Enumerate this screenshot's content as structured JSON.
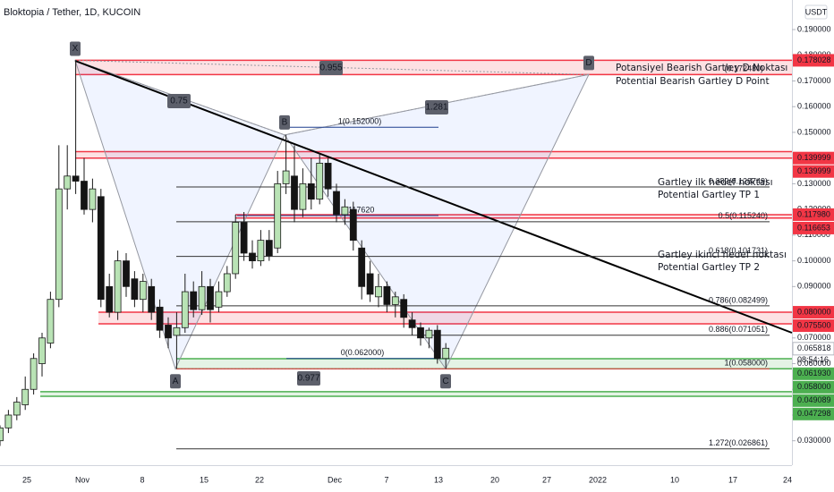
{
  "chart_data": {
    "type": "candlestick",
    "title": "Bloktopia / Tether, 1D, KUCOIN",
    "unit": "USDT",
    "up_color": "#b9e3b5",
    "down_color": "#141414",
    "x_labels": [
      "25",
      "Nov",
      "8",
      "15",
      "22",
      "Dec",
      "7",
      "13",
      "20",
      "27",
      "2022",
      "10",
      "17",
      "24"
    ],
    "open": [
      0.03,
      0.035,
      0.04,
      0.044,
      0.05,
      0.06,
      0.068,
      0.085,
      0.128,
      0.133,
      0.131,
      0.12,
      0.125,
      0.09,
      0.08,
      0.1,
      0.093,
      0.085,
      0.09,
      0.082,
      0.075,
      0.071,
      0.074,
      0.088,
      0.081,
      0.09,
      0.082,
      0.088,
      0.095,
      0.115,
      0.103,
      0.1,
      0.108,
      0.105,
      0.13,
      0.133,
      0.12,
      0.13,
      0.124,
      0.138,
      0.127,
      0.118,
      0.12,
      0.105,
      0.095,
      0.086,
      0.09,
      0.083,
      0.085,
      0.077,
      0.074,
      0.07,
      0.073,
      0.062
    ],
    "high": [
      0.036,
      0.042,
      0.047,
      0.055,
      0.064,
      0.072,
      0.088,
      0.145,
      0.145,
      0.178,
      0.14,
      0.132,
      0.128,
      0.095,
      0.104,
      0.103,
      0.096,
      0.095,
      0.093,
      0.085,
      0.078,
      0.08,
      0.095,
      0.092,
      0.096,
      0.093,
      0.092,
      0.098,
      0.118,
      0.119,
      0.108,
      0.112,
      0.112,
      0.135,
      0.149,
      0.145,
      0.136,
      0.14,
      0.142,
      0.14,
      0.13,
      0.124,
      0.123,
      0.108,
      0.1,
      0.095,
      0.092,
      0.088,
      0.087,
      0.08,
      0.076,
      0.074,
      0.075,
      0.068
    ],
    "low": [
      0.028,
      0.033,
      0.038,
      0.042,
      0.048,
      0.055,
      0.066,
      0.082,
      0.12,
      0.126,
      0.118,
      0.115,
      0.082,
      0.078,
      0.077,
      0.086,
      0.082,
      0.08,
      0.077,
      0.07,
      0.066,
      0.058,
      0.072,
      0.078,
      0.079,
      0.076,
      0.08,
      0.086,
      0.093,
      0.1,
      0.097,
      0.098,
      0.1,
      0.103,
      0.126,
      0.115,
      0.117,
      0.12,
      0.122,
      0.125,
      0.115,
      0.114,
      0.104,
      0.085,
      0.084,
      0.082,
      0.08,
      0.078,
      0.074,
      0.071,
      0.067,
      0.066,
      0.06,
      0.058
    ],
    "close": [
      0.035,
      0.04,
      0.045,
      0.05,
      0.062,
      0.07,
      0.085,
      0.128,
      0.133,
      0.131,
      0.12,
      0.128,
      0.085,
      0.08,
      0.1,
      0.09,
      0.085,
      0.092,
      0.08,
      0.073,
      0.07,
      0.074,
      0.088,
      0.081,
      0.09,
      0.081,
      0.088,
      0.095,
      0.115,
      0.103,
      0.1,
      0.108,
      0.102,
      0.13,
      0.135,
      0.12,
      0.13,
      0.124,
      0.138,
      0.128,
      0.118,
      0.121,
      0.108,
      0.09,
      0.087,
      0.09,
      0.083,
      0.086,
      0.078,
      0.074,
      0.07,
      0.073,
      0.062,
      0.066
    ],
    "ylim": [
      0.0205,
      0.2015
    ],
    "yticks": [
      {
        "value": 0.19,
        "label": "0.190000"
      },
      {
        "value": 0.18,
        "label": "0.180000"
      },
      {
        "value": 0.17,
        "label": "0.170000"
      },
      {
        "value": 0.16,
        "label": "0.160000"
      },
      {
        "value": 0.15,
        "label": "0.150000"
      },
      {
        "value": 0.14,
        "label": "0.140000"
      },
      {
        "value": 0.13,
        "label": "0.130000"
      },
      {
        "value": 0.12,
        "label": "0.120000"
      },
      {
        "value": 0.11,
        "label": "0.110000"
      },
      {
        "value": 0.1,
        "label": "0.100000"
      },
      {
        "value": 0.09,
        "label": "0.090000"
      },
      {
        "value": 0.08,
        "label": "0.080000"
      },
      {
        "value": 0.07,
        "label": "0.070000"
      },
      {
        "value": 0.06,
        "label": "0.060000"
      },
      {
        "value": 0.05,
        "label": "0.050000"
      },
      {
        "value": 0.04,
        "label": "0.040000"
      },
      {
        "value": 0.03,
        "label": "0.030000"
      }
    ],
    "price_tags": [
      {
        "value": 0.178028,
        "label": "0.178028",
        "color": "#f23645"
      },
      {
        "value": 0.139999,
        "label": "0.139999",
        "color": "#f23645"
      },
      {
        "value": 0.139999,
        "label": "0.139999",
        "color": "#f23645"
      },
      {
        "value": 0.11798,
        "label": "0.117980",
        "color": "#f23645"
      },
      {
        "value": 0.116653,
        "label": "0.116653",
        "color": "#f23645"
      },
      {
        "value": 0.08,
        "label": "0.080000",
        "color": "#f23645"
      },
      {
        "value": 0.0755,
        "label": "0.075500",
        "color": "#f23645"
      },
      {
        "value": 0.065818,
        "label": "0.065818",
        "color": "#ffffff"
      },
      {
        "value": 0.06193,
        "label": "0.061930",
        "color": "#4caf50"
      },
      {
        "value": 0.058,
        "label": "0.058000",
        "color": "#4caf50"
      },
      {
        "value": 0.049089,
        "label": "0.049089",
        "color": "#4caf50"
      },
      {
        "value": 0.047298,
        "label": "0.047298",
        "color": "#4caf50"
      }
    ],
    "countdown": "08:54:16",
    "zones": [
      {
        "top": 0.178028,
        "bottom": 0.17248,
        "color": "#f23645"
      },
      {
        "top": 0.1425,
        "bottom": 0.139999,
        "color": "#f23645"
      },
      {
        "top": 0.11798,
        "bottom": 0.116653,
        "color": "#f23645"
      },
      {
        "top": 0.08,
        "bottom": 0.0755,
        "color": "#f23645"
      },
      {
        "top": 0.06193,
        "bottom": 0.058,
        "color": "#4caf50"
      },
      {
        "top": 0.049089,
        "bottom": 0.047298,
        "color": "#4caf50"
      }
    ],
    "levels": [
      {
        "label": "(0.172480)",
        "value": 0.17248,
        "color": "#f23645"
      },
      {
        "label": "0.382(0.128749)",
        "value": 0.128749,
        "color": "#333333"
      },
      {
        "label": "0.5(0.115240)",
        "value": 0.11524,
        "color": "#333333"
      },
      {
        "label": "0.618(0.101731)",
        "value": 0.101731,
        "color": "#333333"
      },
      {
        "label": "0.786(0.082499)",
        "value": 0.082499,
        "color": "#333333"
      },
      {
        "label": "0.886(0.071051)",
        "value": 0.071051,
        "color": "#333333"
      },
      {
        "label": "1(0.058000)",
        "value": 0.058,
        "color": "#f23645"
      },
      {
        "label": "1.272(0.026861)",
        "value": 0.026861,
        "color": "#333333"
      },
      {
        "label": "1(0.152000)",
        "value": 0.152,
        "color": "#1e3f8f"
      },
      {
        "label": "0(0.062000)",
        "value": 0.062,
        "color": "#1e3f8f"
      },
      {
        "label": "0.117620",
        "value": 0.11762,
        "color": "#1e3f8f"
      }
    ],
    "pattern": [
      {
        "label": "X",
        "value": 0.178
      },
      {
        "label": "A",
        "value": 0.058
      },
      {
        "label": "B",
        "value": 0.149
      },
      {
        "label": "C",
        "value": 0.058
      },
      {
        "label": "D",
        "value": 0.1725
      }
    ],
    "ratios": [
      "0.75",
      "0.955",
      "1.281",
      "0.977"
    ],
    "notes": [
      "Potansiyel Bearish Gartley D  Noktası",
      "Potential Bearish Gartley D Point",
      "Gartley ilk hedef noktası",
      "Potential Gartley TP 1",
      "Gartley ikinci hedef noktası",
      "Potential Gartley TP 2"
    ]
  }
}
